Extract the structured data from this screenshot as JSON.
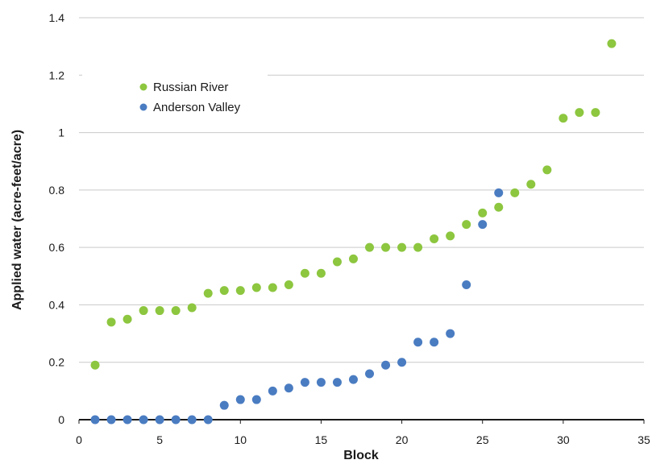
{
  "chart_data": {
    "type": "scatter",
    "xlabel": "Block",
    "ylabel": "Applied water (acre-feet/acre)",
    "xlim": [
      0,
      35
    ],
    "ylim": [
      0,
      1.4
    ],
    "xticks": [
      0,
      5,
      10,
      15,
      20,
      25,
      30,
      35
    ],
    "yticks": [
      0,
      0.2,
      0.4,
      0.6,
      0.8,
      1,
      1.2,
      1.4
    ],
    "xtick_labels": [
      "0",
      "5",
      "10",
      "15",
      "20",
      "25",
      "30",
      "35"
    ],
    "ytick_labels": [
      "0",
      "0.2",
      "0.4",
      "0.6",
      "0.8",
      "1",
      "1.2",
      "1.4"
    ],
    "grid": "horizontal",
    "legend_position": "top-left",
    "series": [
      {
        "name": "Russian River",
        "color": "#8dc63f",
        "x": [
          1,
          2,
          3,
          4,
          5,
          6,
          7,
          8,
          9,
          10,
          11,
          12,
          13,
          14,
          15,
          16,
          17,
          18,
          19,
          20,
          21,
          22,
          23,
          24,
          25,
          26,
          27,
          28,
          29,
          30,
          31,
          32,
          33
        ],
        "y": [
          0.19,
          0.34,
          0.35,
          0.38,
          0.38,
          0.38,
          0.39,
          0.44,
          0.45,
          0.45,
          0.46,
          0.46,
          0.47,
          0.51,
          0.51,
          0.55,
          0.56,
          0.6,
          0.6,
          0.6,
          0.6,
          0.63,
          0.64,
          0.68,
          0.72,
          0.74,
          0.79,
          0.82,
          0.87,
          1.05,
          1.07,
          1.07,
          1.31
        ]
      },
      {
        "name": "Anderson Valley",
        "color": "#4a7cc1",
        "x": [
          1,
          2,
          3,
          4,
          5,
          6,
          7,
          8,
          9,
          10,
          11,
          12,
          13,
          14,
          15,
          16,
          17,
          18,
          19,
          20,
          21,
          22,
          23,
          24,
          25,
          26
        ],
        "y": [
          0,
          0,
          0,
          0,
          0,
          0,
          0,
          0,
          0.05,
          0.07,
          0.07,
          0.1,
          0.11,
          0.13,
          0.13,
          0.13,
          0.14,
          0.16,
          0.19,
          0.2,
          0.27,
          0.27,
          0.3,
          0.47,
          0.68,
          0.79
        ]
      }
    ]
  }
}
